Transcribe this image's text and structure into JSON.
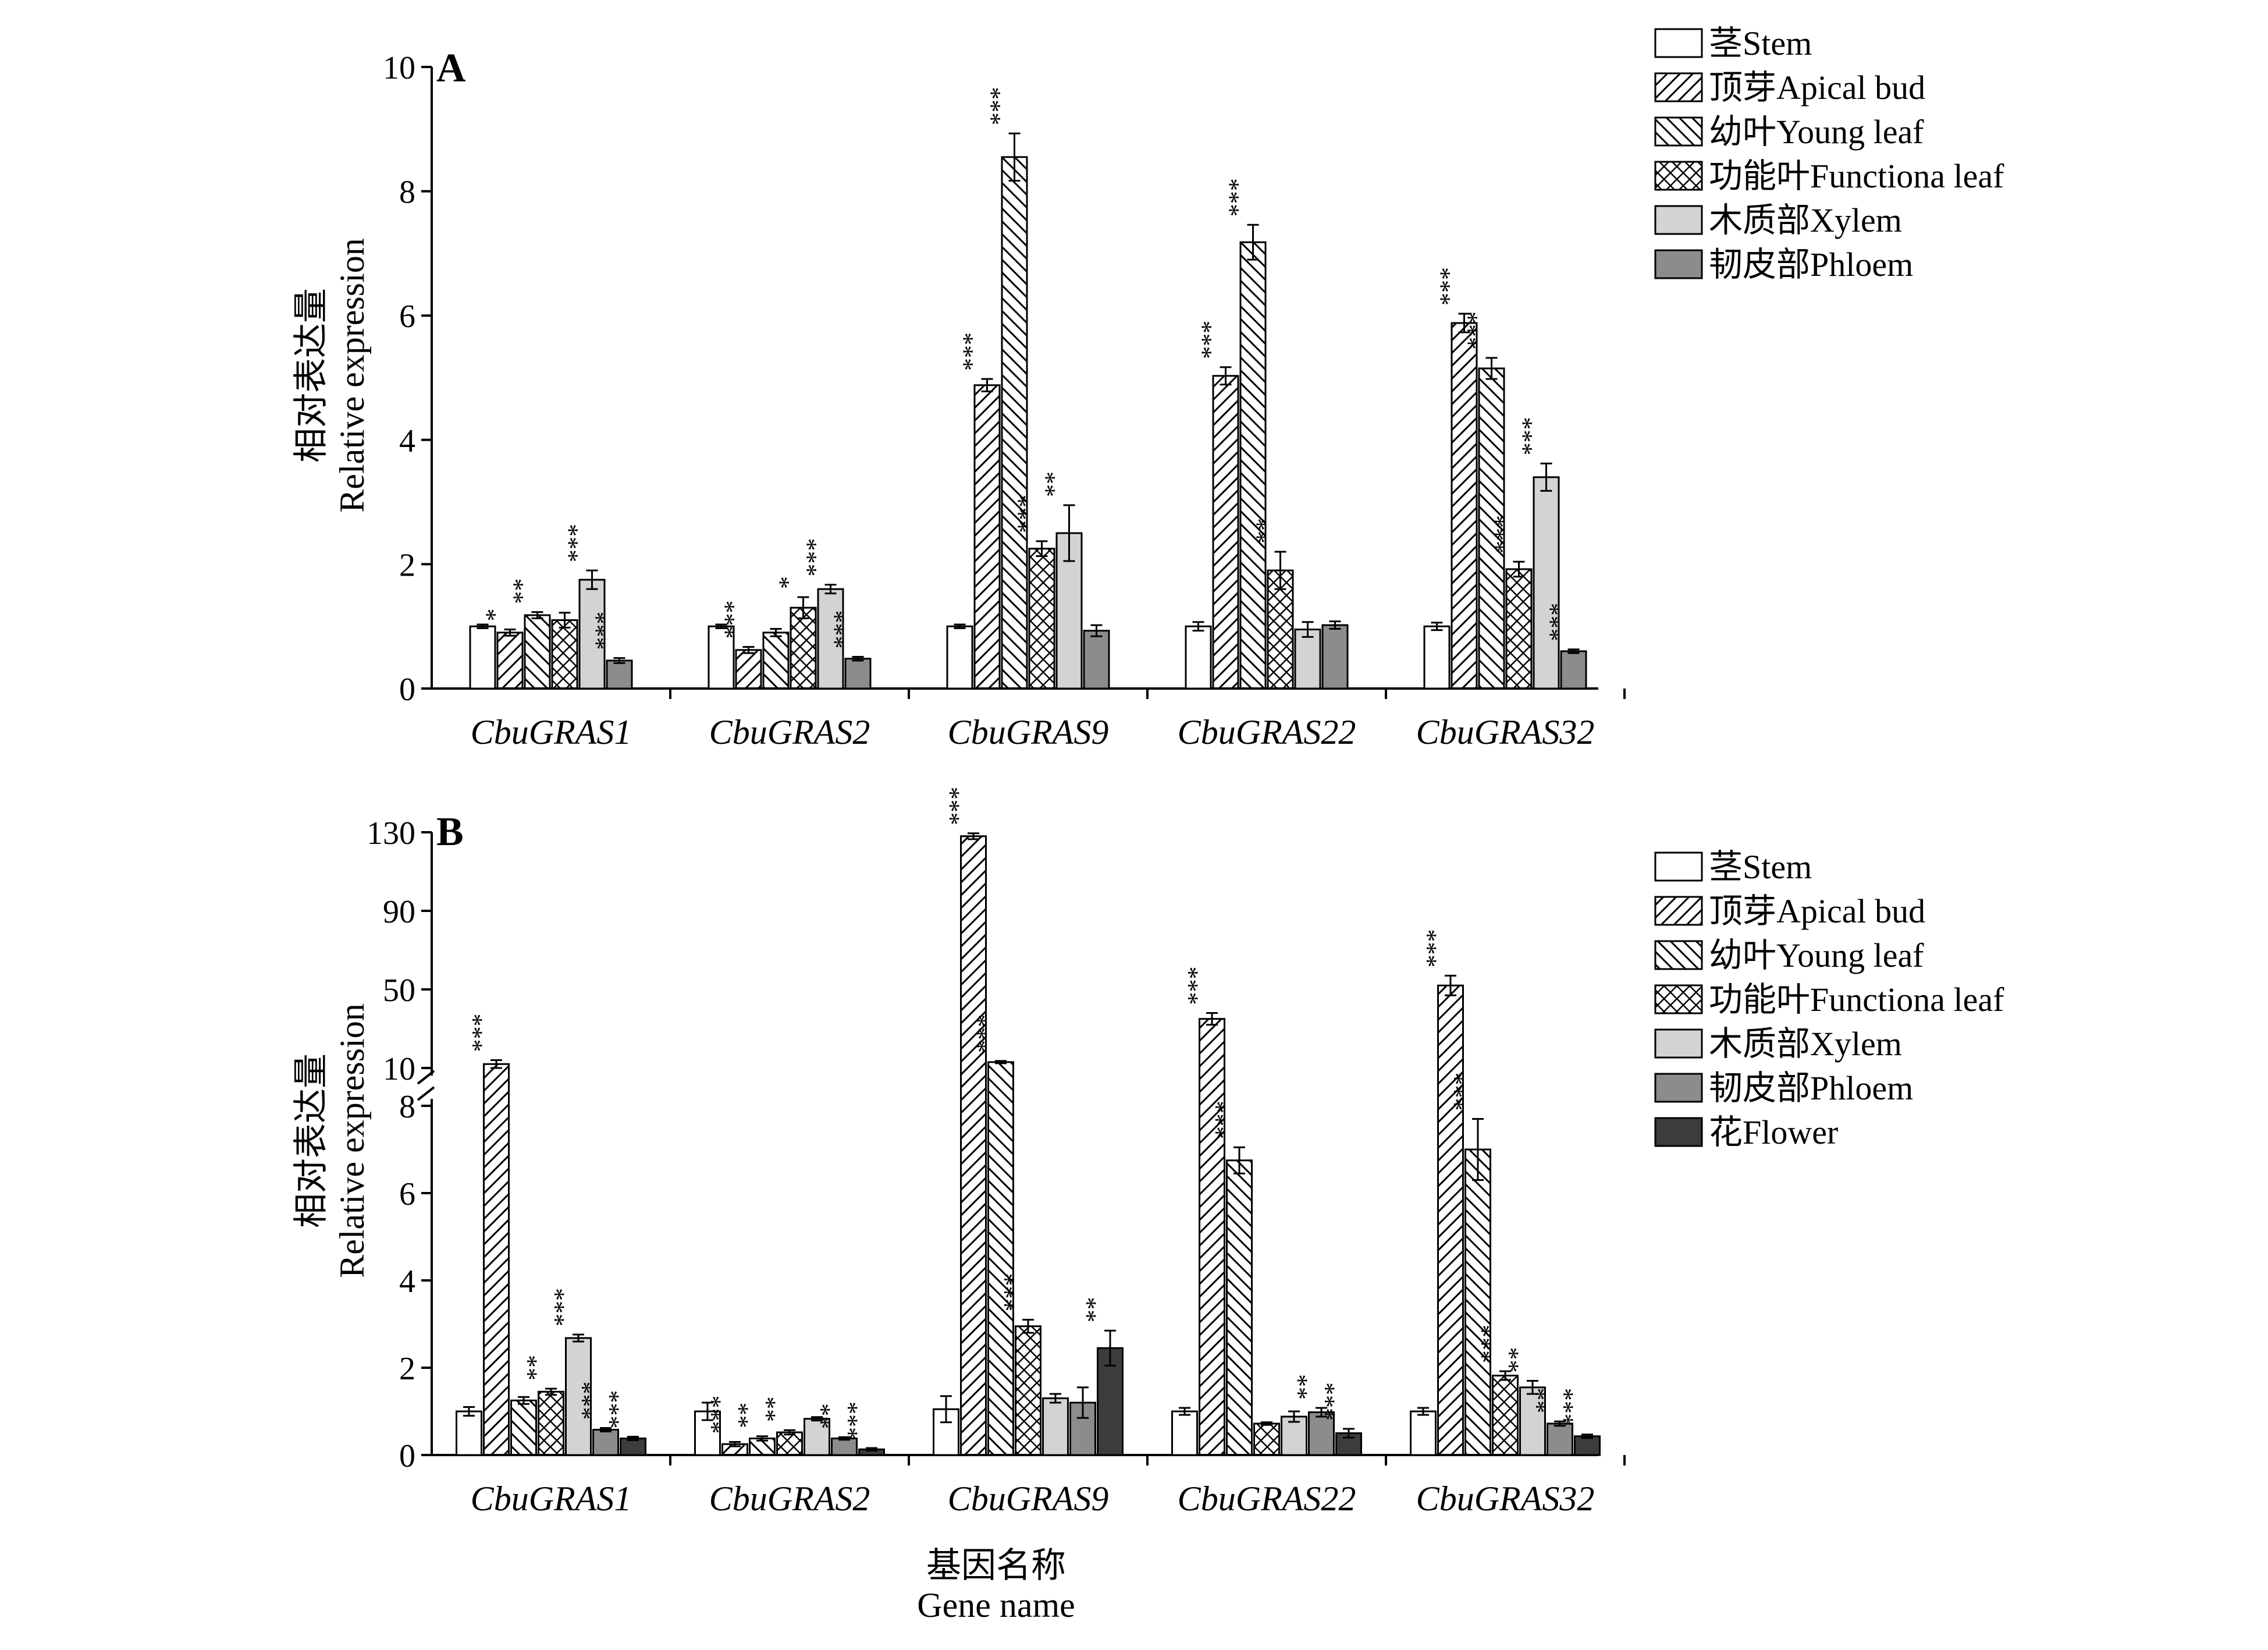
{
  "figure": {
    "xlabel_cn": "基因名称",
    "xlabel_en": "Gene name"
  },
  "chart_data": [
    {
      "type": "bar",
      "panel": "A",
      "ylabel_cn": "相对表达量",
      "ylabel_en": "Relative expression",
      "ylim": [
        0,
        10
      ],
      "yticks": [
        "0",
        "2",
        "4",
        "6",
        "8",
        "10"
      ],
      "categories": [
        "CbuGRAS1",
        "CbuGRAS2",
        "CbuGRAS9",
        "CbuGRAS22",
        "CbuGRAS32"
      ],
      "legend_position": "top-right",
      "series": [
        {
          "name": "茎Stem",
          "fill": "#ffffff",
          "pattern": "none",
          "values": [
            1.0,
            1.0,
            1.0,
            1.0,
            1.0
          ],
          "errors": [
            0.03,
            0.03,
            0.03,
            0.07,
            0.06
          ],
          "sig": [
            "",
            "",
            "",
            "",
            ""
          ]
        },
        {
          "name": "顶芽Apical bud",
          "fill": "#ffffff",
          "pattern": "fwd",
          "values": [
            0.9,
            0.62,
            4.88,
            5.03,
            5.88
          ],
          "errors": [
            0.05,
            0.05,
            0.1,
            0.14,
            0.15
          ],
          "sig": [
            "*",
            "***",
            "***",
            "***",
            "***"
          ]
        },
        {
          "name": "幼叶Young leaf",
          "fill": "#ffffff",
          "pattern": "back",
          "values": [
            1.18,
            0.9,
            8.55,
            7.18,
            5.15
          ],
          "errors": [
            0.05,
            0.06,
            0.38,
            0.28,
            0.17
          ],
          "sig": [
            "**",
            "",
            "***",
            "***",
            "***"
          ]
        },
        {
          "name": "功能叶Functiona leaf",
          "fill": "#ffffff",
          "pattern": "cross",
          "values": [
            1.1,
            1.3,
            2.25,
            1.9,
            1.92
          ],
          "errors": [
            0.12,
            0.17,
            0.12,
            0.3,
            0.12
          ],
          "sig": [
            "",
            "*",
            "***",
            "**",
            "***"
          ]
        },
        {
          "name": "木质部Xylem",
          "fill": "#d3d3d3",
          "pattern": "none",
          "values": [
            1.75,
            1.6,
            2.5,
            0.95,
            3.4
          ],
          "errors": [
            0.15,
            0.07,
            0.45,
            0.12,
            0.22
          ],
          "sig": [
            "***",
            "***",
            "**",
            "",
            "***"
          ]
        },
        {
          "name": "韧皮部Phloem",
          "fill": "#8c8c8c",
          "pattern": "none",
          "values": [
            0.45,
            0.48,
            0.93,
            1.02,
            0.6
          ],
          "errors": [
            0.04,
            0.03,
            0.09,
            0.06,
            0.03
          ],
          "sig": [
            "***",
            "***",
            "",
            "",
            "***"
          ]
        }
      ]
    },
    {
      "type": "bar",
      "panel": "B",
      "ylabel_cn": "相对表达量",
      "ylabel_en": "Relative expression",
      "broken_axis": true,
      "ylim_lower": [
        0,
        8
      ],
      "ylim_upper": [
        10,
        130
      ],
      "yticks_lower": [
        "0",
        "2",
        "4",
        "6",
        "8"
      ],
      "yticks_upper": [
        "10",
        "50",
        "90",
        "130"
      ],
      "categories": [
        "CbuGRAS1",
        "CbuGRAS2",
        "CbuGRAS9",
        "CbuGRAS22",
        "CbuGRAS32"
      ],
      "legend_position": "right",
      "series": [
        {
          "name": "茎Stem",
          "fill": "#ffffff",
          "pattern": "none",
          "values": [
            1.0,
            1.0,
            1.05,
            1.0,
            1.0
          ],
          "errors": [
            0.1,
            0.2,
            0.3,
            0.08,
            0.08
          ],
          "sig": [
            "",
            "",
            "",
            "",
            ""
          ]
        },
        {
          "name": "顶芽Apical bud",
          "fill": "#ffffff",
          "pattern": "fwd",
          "values": [
            12.0,
            0.25,
            128.0,
            35.0,
            52.0
          ],
          "errors": [
            2.0,
            0.05,
            1.5,
            3.0,
            5.0
          ],
          "sig": [
            "***",
            "***",
            "***",
            "***",
            "***"
          ]
        },
        {
          "name": "幼叶Young leaf",
          "fill": "#ffffff",
          "pattern": "back",
          "values": [
            1.25,
            0.38,
            13.0,
            6.75,
            7.0
          ],
          "errors": [
            0.08,
            0.05,
            0.6,
            0.3,
            0.7
          ],
          "sig": [
            "",
            "**",
            "***",
            "***",
            "***"
          ]
        },
        {
          "name": "功能叶Functiona leaf",
          "fill": "#ffffff",
          "pattern": "cross",
          "values": [
            1.45,
            0.52,
            2.95,
            0.72,
            1.82
          ],
          "errors": [
            0.07,
            0.05,
            0.15,
            0.03,
            0.1
          ],
          "sig": [
            "**",
            "**",
            "***",
            "",
            "***"
          ]
        },
        {
          "name": "木质部Xylem",
          "fill": "#d3d3d3",
          "pattern": "none",
          "values": [
            2.68,
            0.83,
            1.3,
            0.88,
            1.55
          ],
          "errors": [
            0.08,
            0.04,
            0.1,
            0.12,
            0.15
          ],
          "sig": [
            "***",
            "",
            "",
            "",
            "**"
          ]
        },
        {
          "name": "韧皮部Phloem",
          "fill": "#8c8c8c",
          "pattern": "none",
          "values": [
            0.58,
            0.38,
            1.2,
            0.98,
            0.72
          ],
          "errors": [
            0.04,
            0.03,
            0.35,
            0.1,
            0.05
          ],
          "sig": [
            "***",
            "**",
            "",
            "**",
            "**"
          ]
        },
        {
          "name": "花Flower",
          "fill": "#3c3c3c",
          "pattern": "none",
          "values": [
            0.38,
            0.13,
            2.45,
            0.5,
            0.43
          ],
          "errors": [
            0.04,
            0.03,
            0.4,
            0.1,
            0.04
          ],
          "sig": [
            "***",
            "***",
            "**",
            "***",
            "***"
          ]
        }
      ]
    }
  ]
}
